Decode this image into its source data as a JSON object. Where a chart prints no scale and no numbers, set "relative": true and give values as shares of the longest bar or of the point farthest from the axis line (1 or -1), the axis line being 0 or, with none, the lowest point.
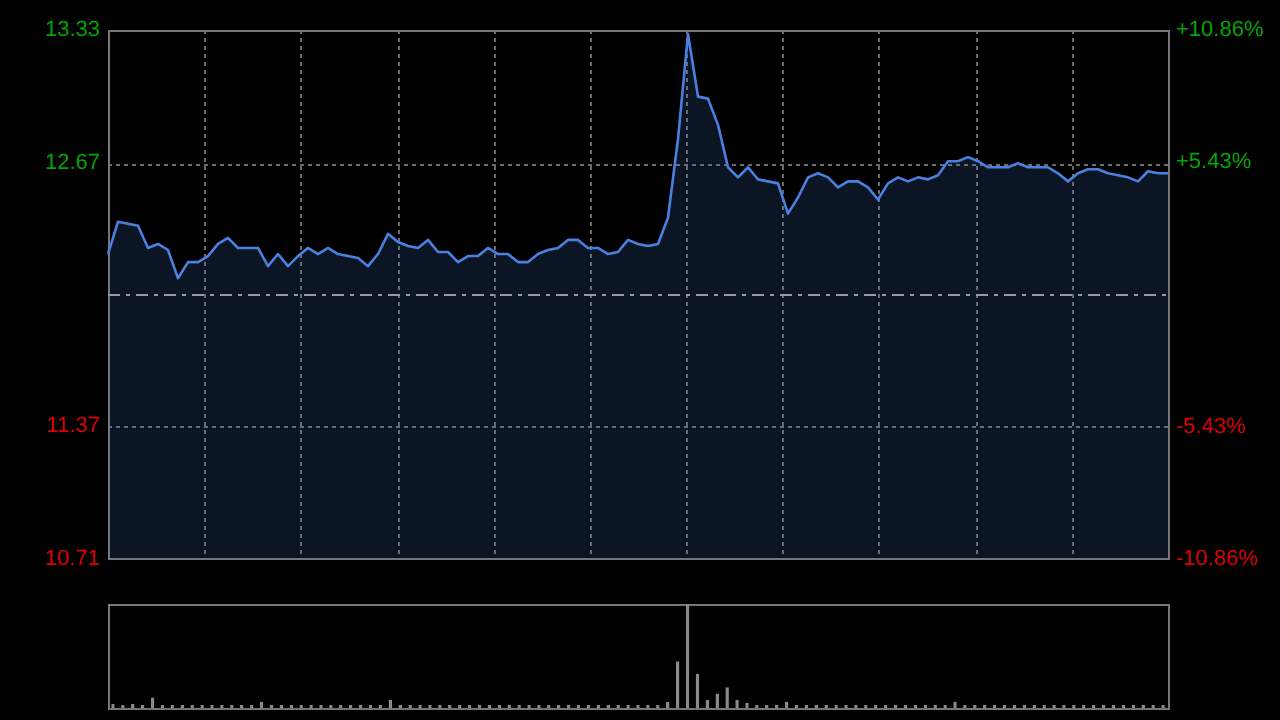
{
  "chart_data": [
    {
      "type": "area",
      "categories": [
        null,
        null,
        null,
        null,
        null,
        null,
        null,
        null,
        null,
        null,
        null,
        null,
        null,
        null,
        null,
        null,
        null,
        null,
        null,
        null,
        null,
        null,
        null,
        null,
        null,
        null,
        null,
        null,
        null,
        null,
        null,
        null,
        null,
        null,
        null,
        null,
        null,
        null,
        null,
        null,
        null,
        null,
        null,
        null,
        null,
        null,
        null,
        null,
        null,
        null,
        null,
        null,
        null,
        null,
        null,
        null,
        null,
        null,
        null,
        null,
        null,
        null,
        null,
        null,
        null,
        null,
        null,
        null,
        null,
        null,
        null,
        null,
        null,
        null,
        null,
        null,
        null,
        null,
        null,
        null,
        null,
        null,
        null,
        null,
        null,
        null,
        null,
        null,
        null,
        null,
        null,
        null,
        null,
        null,
        null,
        null,
        null,
        null,
        null,
        null,
        null,
        null,
        null,
        null,
        null,
        null,
        null
      ],
      "series": [
        {
          "color": "#4a80e0",
          "values": [
            12.22,
            12.38,
            12.37,
            12.36,
            12.25,
            12.27,
            12.24,
            12.1,
            12.18,
            12.18,
            12.21,
            12.27,
            12.3,
            12.25,
            12.25,
            12.25,
            12.16,
            12.22,
            12.16,
            12.21,
            12.25,
            12.22,
            12.25,
            12.22,
            12.21,
            12.2,
            12.16,
            12.22,
            12.32,
            12.28,
            12.26,
            12.25,
            12.29,
            12.23,
            12.23,
            12.18,
            12.21,
            12.21,
            12.25,
            12.22,
            12.22,
            12.18,
            12.18,
            12.22,
            12.24,
            12.25,
            12.29,
            12.29,
            12.25,
            12.25,
            12.22,
            12.23,
            12.29,
            12.27,
            12.26,
            12.27,
            12.4,
            12.79,
            13.31,
            13.0,
            12.99,
            12.86,
            12.65,
            12.6,
            12.65,
            12.59,
            12.58,
            12.57,
            12.42,
            12.5,
            12.6,
            12.62,
            12.6,
            12.55,
            12.58,
            12.58,
            12.55,
            12.49,
            12.57,
            12.6,
            12.58,
            12.6,
            12.59,
            12.61,
            12.68,
            12.68,
            12.7,
            12.68,
            12.65,
            12.65,
            12.65,
            12.67,
            12.65,
            12.65,
            12.65,
            12.62,
            12.58,
            12.62,
            12.64,
            12.64,
            12.62,
            12.61,
            12.6,
            12.58,
            12.63,
            12.62,
            12.62
          ]
        }
      ],
      "ylim": [
        10.71,
        13.33
      ],
      "yticks": [
        10.71,
        11.37,
        12.67,
        13.33
      ],
      "y2lim": [
        -10.86,
        10.86
      ],
      "y2ticks": [
        {
          "value": -10.86,
          "label": "-10.86%"
        },
        {
          "value": -5.43,
          "label": "-5.43%"
        },
        {
          "value": 5.43,
          "label": "+5.43%"
        },
        {
          "value": 10.86,
          "label": "+10.86%"
        }
      ],
      "ref_lines": [
        {
          "axis": "y",
          "value": 12.02,
          "line_style": "dashed",
          "color": "#9a9a9a"
        }
      ],
      "grid": true
    },
    {
      "type": "bar",
      "relative": true,
      "color": "#8a8a8a",
      "categories": [
        null,
        null,
        null,
        null,
        null,
        null,
        null,
        null,
        null,
        null,
        null,
        null,
        null,
        null,
        null,
        null,
        null,
        null,
        null,
        null,
        null,
        null,
        null,
        null,
        null,
        null,
        null,
        null,
        null,
        null,
        null,
        null,
        null,
        null,
        null,
        null,
        null,
        null,
        null,
        null,
        null,
        null,
        null,
        null,
        null,
        null,
        null,
        null,
        null,
        null,
        null,
        null,
        null,
        null,
        null,
        null,
        null,
        null,
        null,
        null,
        null,
        null,
        null,
        null,
        null,
        null,
        null,
        null,
        null,
        null,
        null,
        null,
        null,
        null,
        null,
        null,
        null,
        null,
        null,
        null,
        null,
        null,
        null,
        null,
        null,
        null,
        null,
        null,
        null,
        null,
        null,
        null,
        null,
        null,
        null,
        null,
        null,
        null,
        null,
        null,
        null,
        null,
        null,
        null,
        null,
        null,
        null
      ],
      "values": [
        0.04,
        0.03,
        0.04,
        0.03,
        0.1,
        0.03,
        0.03,
        0.03,
        0.03,
        0.03,
        0.03,
        0.03,
        0.03,
        0.03,
        0.03,
        0.06,
        0.03,
        0.03,
        0.03,
        0.03,
        0.03,
        0.03,
        0.03,
        0.03,
        0.03,
        0.03,
        0.03,
        0.03,
        0.08,
        0.03,
        0.03,
        0.03,
        0.03,
        0.03,
        0.03,
        0.03,
        0.03,
        0.03,
        0.03,
        0.03,
        0.03,
        0.03,
        0.03,
        0.03,
        0.03,
        0.03,
        0.03,
        0.03,
        0.03,
        0.03,
        0.03,
        0.03,
        0.03,
        0.03,
        0.03,
        0.03,
        0.06,
        0.45,
        1,
        0.33,
        0.08,
        0.14,
        0.2,
        0.08,
        0.05,
        0.03,
        0.03,
        0.03,
        0.06,
        0.03,
        0.03,
        0.03,
        0.03,
        0.03,
        0.03,
        0.03,
        0.03,
        0.03,
        0.03,
        0.03,
        0.03,
        0.03,
        0.03,
        0.03,
        0.03,
        0.06,
        0.03,
        0.03,
        0.03,
        0.03,
        0.03,
        0.03,
        0.03,
        0.03,
        0.03,
        0.03,
        0.03,
        0.03,
        0.03,
        0.03,
        0.03,
        0.03,
        0.03,
        0.03,
        0.03,
        0.03,
        0.03
      ]
    }
  ]
}
